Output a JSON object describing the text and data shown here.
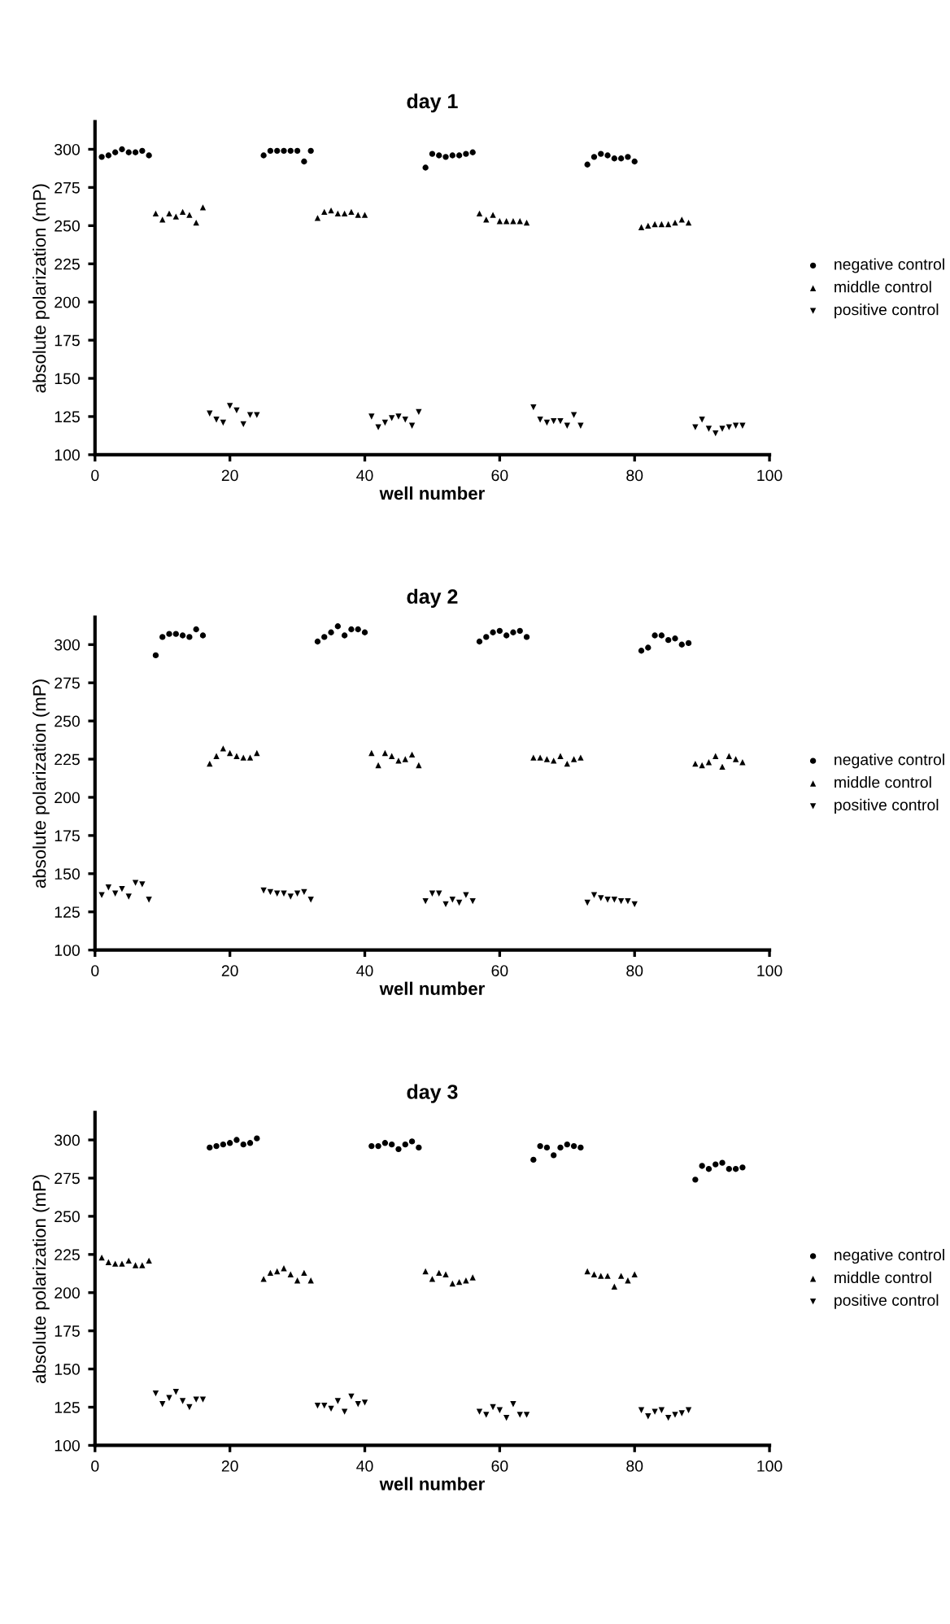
{
  "chart_data": [
    {
      "type": "scatter",
      "title": "day 1",
      "xlabel": "well number",
      "ylabel": "absolute polarization (mP)",
      "xlim": [
        0,
        100
      ],
      "xticks": [
        0,
        20,
        40,
        60,
        80,
        100
      ],
      "ylim": [
        100,
        318
      ],
      "yticks": [
        100,
        125,
        150,
        175,
        200,
        225,
        250,
        275,
        300
      ],
      "grid": false,
      "legend": "right",
      "series": [
        {
          "name": "negative control",
          "color": "#000000",
          "marker": "circle",
          "x": [
            1,
            2,
            3,
            4,
            5,
            6,
            7,
            8,
            25,
            26,
            27,
            28,
            29,
            30,
            31,
            32,
            49,
            50,
            51,
            52,
            53,
            54,
            55,
            56,
            73,
            74,
            75,
            76,
            77,
            78,
            79,
            80
          ],
          "values": [
            295,
            296,
            298,
            300,
            298,
            298,
            299,
            296,
            296,
            299,
            299,
            299,
            299,
            299,
            292,
            299,
            288,
            297,
            296,
            295,
            296,
            296,
            297,
            298,
            290,
            295,
            297,
            296,
            294,
            294,
            295,
            292
          ]
        },
        {
          "name": "middle control",
          "color": "#000000",
          "marker": "triangle",
          "x": [
            9,
            10,
            11,
            12,
            13,
            14,
            15,
            16,
            33,
            34,
            35,
            36,
            37,
            38,
            39,
            40,
            57,
            58,
            59,
            60,
            61,
            62,
            63,
            64,
            81,
            82,
            83,
            84,
            85,
            86,
            87,
            88
          ],
          "values": [
            258,
            254,
            258,
            256,
            259,
            257,
            252,
            262,
            255,
            259,
            260,
            258,
            258,
            259,
            257,
            257,
            258,
            254,
            257,
            253,
            253,
            253,
            253,
            252,
            249,
            250,
            251,
            251,
            251,
            252,
            254,
            252
          ]
        },
        {
          "name": "positive control",
          "color": "#000000",
          "marker": "triangle_down",
          "x": [
            17,
            18,
            19,
            20,
            21,
            22,
            23,
            24,
            41,
            42,
            43,
            44,
            45,
            46,
            47,
            48,
            65,
            66,
            67,
            68,
            69,
            70,
            71,
            72,
            89,
            90,
            91,
            92,
            93,
            94,
            95,
            96
          ],
          "values": [
            127,
            123,
            121,
            132,
            129,
            120,
            126,
            126,
            125,
            118,
            121,
            124,
            125,
            123,
            119,
            128,
            131,
            123,
            121,
            122,
            122,
            119,
            126,
            119,
            118,
            123,
            117,
            114,
            117,
            118,
            119,
            119
          ]
        }
      ]
    },
    {
      "type": "scatter",
      "title": "day 2",
      "xlabel": "well number",
      "ylabel": "absolute polarization (mP)",
      "xlim": [
        0,
        100
      ],
      "xticks": [
        0,
        20,
        40,
        60,
        80,
        100
      ],
      "ylim": [
        100,
        318
      ],
      "yticks": [
        100,
        125,
        150,
        175,
        200,
        225,
        250,
        275,
        300
      ],
      "grid": false,
      "legend": "right",
      "series": [
        {
          "name": "negative control",
          "color": "#000000",
          "marker": "circle",
          "x": [
            9,
            10,
            11,
            12,
            13,
            14,
            15,
            16,
            33,
            34,
            35,
            36,
            37,
            38,
            39,
            40,
            57,
            58,
            59,
            60,
            61,
            62,
            63,
            64,
            81,
            82,
            83,
            84,
            85,
            86,
            87,
            88
          ],
          "values": [
            293,
            305,
            307,
            307,
            306,
            305,
            310,
            306,
            302,
            305,
            308,
            312,
            306,
            310,
            310,
            308,
            302,
            305,
            308,
            309,
            306,
            308,
            309,
            305,
            296,
            298,
            306,
            306,
            303,
            304,
            300,
            301
          ]
        },
        {
          "name": "middle control",
          "color": "#000000",
          "marker": "triangle",
          "x": [
            17,
            18,
            19,
            20,
            21,
            22,
            23,
            24,
            41,
            42,
            43,
            44,
            45,
            46,
            47,
            48,
            65,
            66,
            67,
            68,
            69,
            70,
            71,
            72,
            89,
            90,
            91,
            92,
            93,
            94,
            95,
            96
          ],
          "values": [
            222,
            227,
            232,
            229,
            227,
            226,
            226,
            229,
            229,
            221,
            229,
            227,
            224,
            225,
            228,
            221,
            226,
            226,
            225,
            224,
            227,
            222,
            225,
            226,
            222,
            221,
            223,
            227,
            220,
            227,
            225,
            223
          ]
        },
        {
          "name": "positive control",
          "color": "#000000",
          "marker": "triangle_down",
          "x": [
            1,
            2,
            3,
            4,
            5,
            6,
            7,
            8,
            25,
            26,
            27,
            28,
            29,
            30,
            31,
            32,
            49,
            50,
            51,
            52,
            53,
            54,
            55,
            56,
            73,
            74,
            75,
            76,
            77,
            78,
            79,
            80
          ],
          "values": [
            136,
            141,
            137,
            140,
            135,
            144,
            143,
            133,
            139,
            138,
            137,
            137,
            135,
            137,
            138,
            133,
            132,
            137,
            137,
            130,
            133,
            131,
            136,
            132,
            131,
            136,
            134,
            133,
            133,
            132,
            132,
            130
          ]
        }
      ]
    },
    {
      "type": "scatter",
      "title": "day 3",
      "xlabel": "well number",
      "ylabel": "absolute polarization (mP)",
      "xlim": [
        0,
        100
      ],
      "xticks": [
        0,
        20,
        40,
        60,
        80,
        100
      ],
      "ylim": [
        100,
        318
      ],
      "yticks": [
        100,
        125,
        150,
        175,
        200,
        225,
        250,
        275,
        300
      ],
      "grid": false,
      "legend": "right",
      "series": [
        {
          "name": "negative control",
          "color": "#000000",
          "marker": "circle",
          "x": [
            17,
            18,
            19,
            20,
            21,
            22,
            23,
            24,
            41,
            42,
            43,
            44,
            45,
            46,
            47,
            48,
            65,
            66,
            67,
            68,
            69,
            70,
            71,
            72,
            89,
            90,
            91,
            92,
            93,
            94,
            95,
            96
          ],
          "values": [
            295,
            296,
            297,
            298,
            300,
            297,
            298,
            301,
            296,
            296,
            298,
            297,
            294,
            297,
            299,
            295,
            287,
            296,
            295,
            290,
            295,
            297,
            296,
            295,
            274,
            283,
            281,
            284,
            285,
            281,
            281,
            282
          ]
        },
        {
          "name": "middle control",
          "color": "#000000",
          "marker": "triangle",
          "x": [
            1,
            2,
            3,
            4,
            5,
            6,
            7,
            8,
            25,
            26,
            27,
            28,
            29,
            30,
            31,
            32,
            49,
            50,
            51,
            52,
            53,
            54,
            55,
            56,
            73,
            74,
            75,
            76,
            77,
            78,
            79,
            80
          ],
          "values": [
            223,
            220,
            219,
            219,
            221,
            218,
            218,
            221,
            209,
            213,
            214,
            216,
            212,
            208,
            213,
            208,
            214,
            209,
            213,
            212,
            206,
            207,
            208,
            210,
            214,
            212,
            211,
            211,
            204,
            211,
            208,
            212
          ]
        },
        {
          "name": "positive control",
          "color": "#000000",
          "marker": "triangle_down",
          "x": [
            9,
            10,
            11,
            12,
            13,
            14,
            15,
            16,
            33,
            34,
            35,
            36,
            37,
            38,
            39,
            40,
            57,
            58,
            59,
            60,
            61,
            62,
            63,
            64,
            81,
            82,
            83,
            84,
            85,
            86,
            87,
            88
          ],
          "values": [
            134,
            127,
            131,
            135,
            129,
            125,
            130,
            130,
            126,
            126,
            124,
            129,
            122,
            132,
            127,
            128,
            122,
            120,
            125,
            123,
            118,
            127,
            120,
            120,
            123,
            119,
            122,
            123,
            118,
            120,
            121,
            123
          ]
        }
      ]
    }
  ]
}
